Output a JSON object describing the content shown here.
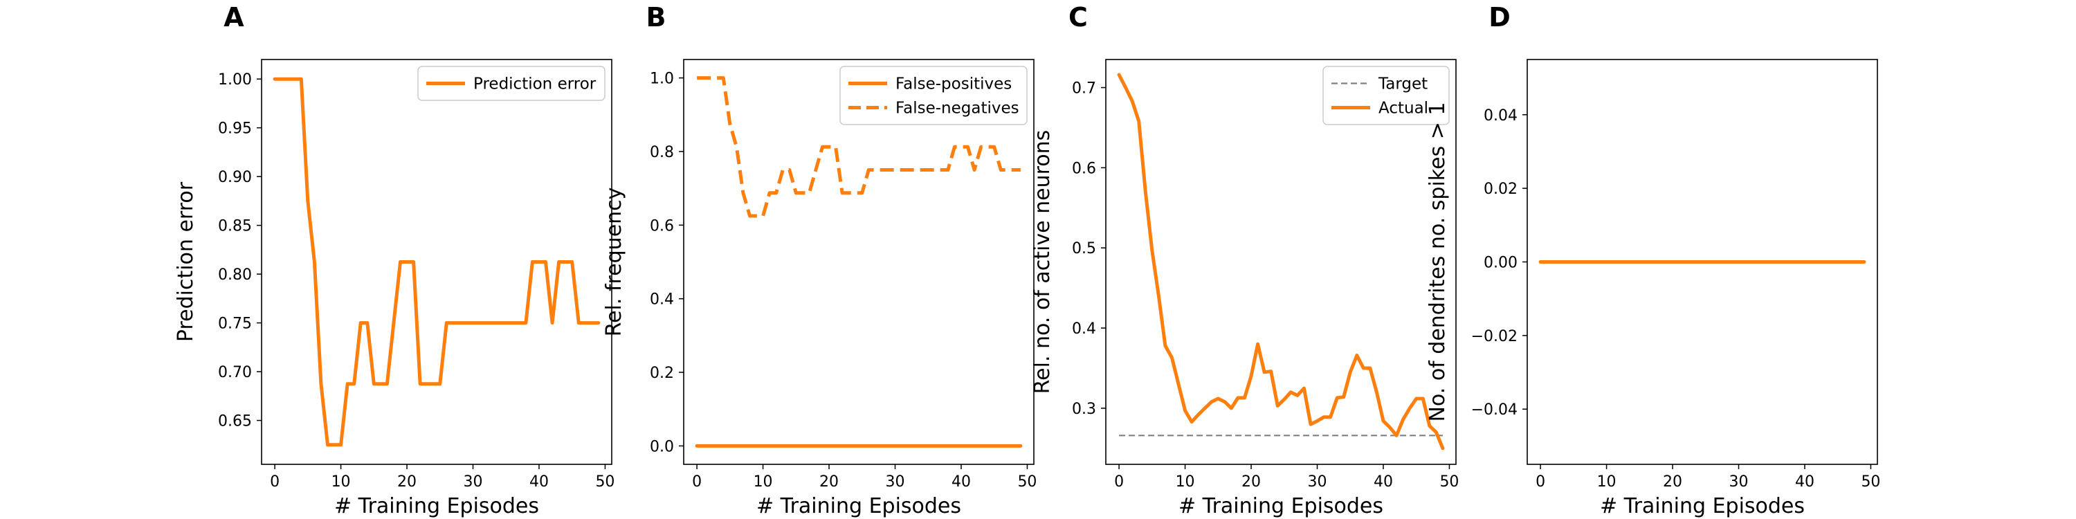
{
  "chart_data": [
    {
      "panel": "A",
      "type": "line",
      "xlabel": "# Training Episodes",
      "ylabel": "Prediction error",
      "xlim": [
        -2,
        51
      ],
      "ylim": [
        0.605,
        1.02
      ],
      "xticks": [
        0,
        10,
        20,
        30,
        40,
        50
      ],
      "yticks": [
        0.65,
        0.7,
        0.75,
        0.8,
        0.85,
        0.9,
        0.95,
        1.0
      ],
      "ytick_labels": [
        "0.65",
        "0.70",
        "0.75",
        "0.80",
        "0.85",
        "0.90",
        "0.95",
        "1.00"
      ],
      "legend": "top-right",
      "series": [
        {
          "name": "Prediction error",
          "color": "#ff7f0e",
          "dash": "solid",
          "x": [
            0,
            1,
            2,
            3,
            4,
            5,
            6,
            7,
            8,
            9,
            10,
            11,
            12,
            13,
            14,
            15,
            16,
            17,
            18,
            19,
            20,
            21,
            22,
            23,
            24,
            25,
            26,
            27,
            28,
            29,
            30,
            31,
            32,
            33,
            34,
            35,
            36,
            37,
            38,
            39,
            40,
            41,
            42,
            43,
            44,
            45,
            46,
            47,
            48,
            49
          ],
          "y": [
            1.0,
            1.0,
            1.0,
            1.0,
            1.0,
            0.875,
            0.8125,
            0.6875,
            0.625,
            0.625,
            0.625,
            0.6875,
            0.6875,
            0.75,
            0.75,
            0.6875,
            0.6875,
            0.6875,
            0.75,
            0.8125,
            0.8125,
            0.8125,
            0.6875,
            0.6875,
            0.6875,
            0.6875,
            0.75,
            0.75,
            0.75,
            0.75,
            0.75,
            0.75,
            0.75,
            0.75,
            0.75,
            0.75,
            0.75,
            0.75,
            0.75,
            0.8125,
            0.8125,
            0.8125,
            0.75,
            0.8125,
            0.8125,
            0.8125,
            0.75,
            0.75,
            0.75,
            0.75
          ]
        }
      ]
    },
    {
      "panel": "B",
      "type": "line",
      "xlabel": "# Training Episodes",
      "ylabel": "Rel. frequency",
      "xlim": [
        -2,
        51
      ],
      "ylim": [
        -0.05,
        1.05
      ],
      "xticks": [
        0,
        10,
        20,
        30,
        40,
        50
      ],
      "yticks": [
        0.0,
        0.2,
        0.4,
        0.6,
        0.8,
        1.0
      ],
      "ytick_labels": [
        "0.0",
        "0.2",
        "0.4",
        "0.6",
        "0.8",
        "1.0"
      ],
      "legend": "top-right",
      "series": [
        {
          "name": "False-positives",
          "color": "#ff7f0e",
          "dash": "solid",
          "x": [
            0,
            1,
            2,
            3,
            4,
            5,
            6,
            7,
            8,
            9,
            10,
            11,
            12,
            13,
            14,
            15,
            16,
            17,
            18,
            19,
            20,
            21,
            22,
            23,
            24,
            25,
            26,
            27,
            28,
            29,
            30,
            31,
            32,
            33,
            34,
            35,
            36,
            37,
            38,
            39,
            40,
            41,
            42,
            43,
            44,
            45,
            46,
            47,
            48,
            49
          ],
          "y": [
            0,
            0,
            0,
            0,
            0,
            0,
            0,
            0,
            0,
            0,
            0,
            0,
            0,
            0,
            0,
            0,
            0,
            0,
            0,
            0,
            0,
            0,
            0,
            0,
            0,
            0,
            0,
            0,
            0,
            0,
            0,
            0,
            0,
            0,
            0,
            0,
            0,
            0,
            0,
            0,
            0,
            0,
            0,
            0,
            0,
            0,
            0,
            0,
            0,
            0
          ]
        },
        {
          "name": "False-negatives",
          "color": "#ff7f0e",
          "dash": "dashed",
          "x": [
            0,
            1,
            2,
            3,
            4,
            5,
            6,
            7,
            8,
            9,
            10,
            11,
            12,
            13,
            14,
            15,
            16,
            17,
            18,
            19,
            20,
            21,
            22,
            23,
            24,
            25,
            26,
            27,
            28,
            29,
            30,
            31,
            32,
            33,
            34,
            35,
            36,
            37,
            38,
            39,
            40,
            41,
            42,
            43,
            44,
            45,
            46,
            47,
            48,
            49
          ],
          "y": [
            1.0,
            1.0,
            1.0,
            1.0,
            1.0,
            0.875,
            0.8125,
            0.6875,
            0.625,
            0.625,
            0.625,
            0.6875,
            0.6875,
            0.75,
            0.75,
            0.6875,
            0.6875,
            0.6875,
            0.75,
            0.8125,
            0.8125,
            0.8125,
            0.6875,
            0.6875,
            0.6875,
            0.6875,
            0.75,
            0.75,
            0.75,
            0.75,
            0.75,
            0.75,
            0.75,
            0.75,
            0.75,
            0.75,
            0.75,
            0.75,
            0.75,
            0.8125,
            0.8125,
            0.8125,
            0.75,
            0.8125,
            0.8125,
            0.8125,
            0.75,
            0.75,
            0.75,
            0.75
          ]
        }
      ]
    },
    {
      "panel": "C",
      "type": "line",
      "xlabel": "# Training Episodes",
      "ylabel": "Rel. no. of active neurons",
      "xlim": [
        -2,
        51
      ],
      "ylim": [
        0.23,
        0.735
      ],
      "xticks": [
        0,
        10,
        20,
        30,
        40,
        50
      ],
      "yticks": [
        0.3,
        0.4,
        0.5,
        0.6,
        0.7
      ],
      "ytick_labels": [
        "0.3",
        "0.4",
        "0.5",
        "0.6",
        "0.7"
      ],
      "legend": "top-right",
      "series": [
        {
          "name": "Target",
          "color": "#808080",
          "dash": "dashed",
          "x": [
            0,
            49
          ],
          "y": [
            0.266,
            0.266
          ]
        },
        {
          "name": "Actual",
          "color": "#ff7f0e",
          "dash": "solid",
          "x": [
            0,
            1,
            2,
            3,
            4,
            5,
            6,
            7,
            8,
            9,
            10,
            11,
            12,
            13,
            14,
            15,
            16,
            17,
            18,
            19,
            20,
            21,
            22,
            23,
            24,
            25,
            26,
            27,
            28,
            29,
            30,
            31,
            32,
            33,
            34,
            35,
            36,
            37,
            38,
            39,
            40,
            41,
            42,
            43,
            44,
            45,
            46,
            47,
            48,
            49
          ],
          "y": [
            0.716,
            0.7,
            0.683,
            0.658,
            0.57,
            0.497,
            0.44,
            0.378,
            0.363,
            0.33,
            0.297,
            0.283,
            0.292,
            0.3,
            0.308,
            0.312,
            0.308,
            0.3,
            0.313,
            0.313,
            0.34,
            0.38,
            0.345,
            0.346,
            0.303,
            0.311,
            0.32,
            0.316,
            0.325,
            0.28,
            0.284,
            0.289,
            0.289,
            0.313,
            0.314,
            0.345,
            0.366,
            0.35,
            0.35,
            0.32,
            0.284,
            0.276,
            0.266,
            0.286,
            0.3,
            0.312,
            0.312,
            0.278,
            0.27,
            0.25
          ]
        }
      ]
    },
    {
      "panel": "D",
      "type": "line",
      "xlabel": "# Training Episodes",
      "ylabel": "No. of dendrites no. spikes > 1",
      "xlim": [
        -2,
        51
      ],
      "ylim": [
        -0.055,
        0.055
      ],
      "xticks": [
        0,
        10,
        20,
        30,
        40,
        50
      ],
      "yticks": [
        -0.04,
        -0.02,
        0.0,
        0.02,
        0.04
      ],
      "ytick_labels": [
        "−0.04",
        "−0.02",
        "0.00",
        "0.02",
        "0.04"
      ],
      "legend": "",
      "series": [
        {
          "name": "",
          "color": "#ff7f0e",
          "dash": "solid",
          "x": [
            0,
            49
          ],
          "y": [
            0,
            0
          ]
        }
      ]
    }
  ]
}
